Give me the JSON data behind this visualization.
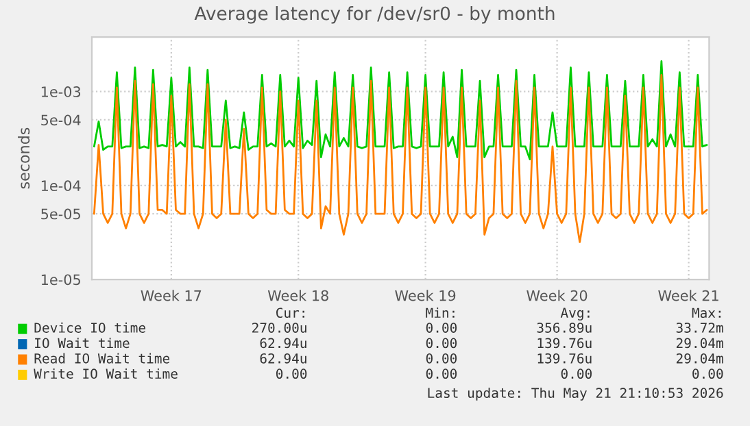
{
  "chart_data": {
    "type": "line",
    "title": "Average latency for /dev/sr0 - by month",
    "ylabel": "seconds",
    "log": "y",
    "grid": true,
    "legend": "bottom",
    "marker": "none",
    "line_style": "solid",
    "categories": [
      null,
      null,
      null,
      null,
      null,
      null,
      null,
      null,
      null,
      null,
      null,
      null,
      null,
      null,
      null,
      null,
      null,
      "Week 17",
      null,
      null,
      null,
      null,
      null,
      null,
      null,
      null,
      null,
      null,
      null,
      null,
      null,
      null,
      null,
      null,
      null,
      null,
      null,
      null,
      null,
      null,
      null,
      null,
      null,
      null,
      null,
      "Week 18",
      null,
      null,
      null,
      null,
      null,
      null,
      null,
      null,
      null,
      null,
      null,
      null,
      null,
      null,
      null,
      null,
      null,
      null,
      null,
      null,
      null,
      null,
      null,
      null,
      null,
      null,
      null,
      "Week 19",
      null,
      null,
      null,
      null,
      null,
      null,
      null,
      null,
      null,
      null,
      null,
      null,
      null,
      null,
      null,
      null,
      null,
      null,
      null,
      null,
      null,
      null,
      null,
      null,
      null,
      null,
      null,
      null,
      "Week 20",
      null,
      null,
      null,
      null,
      null,
      null,
      null,
      null,
      null,
      null,
      null,
      null,
      null,
      null,
      null,
      null,
      null,
      null,
      null,
      null,
      null,
      null,
      null,
      null,
      null,
      null,
      null,
      null,
      "Week 21",
      null,
      null,
      null,
      null
    ],
    "ylim": [
      1e-05,
      0.0038
    ],
    "yticks": [
      {
        "value": 1e-05,
        "label": "1e-05"
      },
      {
        "value": 5e-05,
        "label": "5e-05"
      },
      {
        "value": 0.0001,
        "label": "1e-04"
      },
      {
        "value": 0.0005,
        "label": "5e-04"
      },
      {
        "value": 0.001,
        "label": "1e-03"
      }
    ],
    "annotations": [
      "Cur:",
      "Min:",
      "Avg:",
      "Max:",
      "270.00u",
      "0.00",
      "356.89u",
      "33.72m",
      "62.94u",
      "0.00",
      "139.76u",
      "29.04m",
      "62.94u",
      "0.00",
      "139.76u",
      "29.04m",
      "0.00",
      "0.00",
      "0.00",
      "0.00",
      "Last update: Thu May 21 21:10:53 2026"
    ],
    "series": [
      {
        "name": "Device IO time",
        "color": "#00cc00",
        "values": [
          0.00026,
          0.00048,
          0.00024,
          0.00026,
          0.00026,
          0.0016,
          0.00025,
          0.00026,
          0.00026,
          0.0018,
          0.00025,
          0.00026,
          0.00025,
          0.0017,
          0.00026,
          0.00027,
          0.00026,
          0.0014,
          0.00026,
          0.00029,
          0.00026,
          0.0018,
          0.00026,
          0.00026,
          0.00025,
          0.0017,
          0.00026,
          0.00026,
          0.00026,
          0.0008,
          0.00025,
          0.00026,
          0.00025,
          0.0006,
          0.00024,
          0.00026,
          0.00026,
          0.0015,
          0.00026,
          0.00028,
          0.00026,
          0.0015,
          0.00026,
          0.0003,
          0.00026,
          0.0014,
          0.00025,
          0.0003,
          0.00027,
          0.0013,
          0.0002,
          0.00035,
          0.00026,
          0.0016,
          0.00026,
          0.00032,
          0.00026,
          0.0015,
          0.00026,
          0.00025,
          0.00026,
          0.0018,
          0.00026,
          0.00026,
          0.00026,
          0.0016,
          0.00025,
          0.00026,
          0.00026,
          0.0016,
          0.00026,
          0.00025,
          0.00026,
          0.0015,
          0.00026,
          0.00026,
          0.00026,
          0.0016,
          0.00026,
          0.00033,
          0.0002,
          0.0017,
          0.00026,
          0.00026,
          0.00026,
          0.0013,
          0.0002,
          0.00026,
          0.00026,
          0.0015,
          0.00026,
          0.00026,
          0.00026,
          0.0017,
          0.00026,
          0.00026,
          0.00019,
          0.0015,
          0.00026,
          0.00026,
          0.00026,
          0.0006,
          0.00026,
          0.00026,
          0.00026,
          0.0018,
          0.00026,
          0.00026,
          0.00026,
          0.0016,
          0.00026,
          0.00026,
          0.00026,
          0.0015,
          0.00026,
          0.00026,
          0.00026,
          0.0013,
          0.00026,
          0.00026,
          0.00026,
          0.0015,
          0.00026,
          0.00031,
          0.00026,
          0.0021,
          0.00026,
          0.00035,
          0.00026,
          0.0016,
          0.00026,
          0.00026,
          0.00026,
          0.0015,
          0.00026,
          0.00027
        ]
      },
      {
        "name": "IO Wait time",
        "color": "#0066b3",
        "values": [
          null,
          null,
          null,
          null,
          null,
          null,
          null,
          null,
          null,
          null,
          null,
          null,
          null,
          null,
          null,
          null,
          null,
          null,
          null,
          null,
          null,
          null,
          null,
          null,
          null,
          null,
          null,
          null,
          null,
          null,
          null,
          null,
          null,
          null,
          null,
          null,
          null,
          null,
          null,
          null,
          null,
          null,
          null,
          null,
          null,
          null,
          null,
          null,
          null,
          null,
          null,
          null,
          null,
          null,
          null,
          null,
          null,
          null,
          null,
          null,
          null,
          null,
          null,
          null,
          null,
          null,
          null,
          null,
          null,
          null,
          null,
          null,
          null,
          null,
          null,
          null,
          null,
          null,
          null,
          null,
          null,
          null,
          null,
          null,
          null,
          null,
          null,
          null,
          null,
          null,
          null,
          null,
          null,
          null,
          null,
          null,
          null,
          null,
          null,
          null,
          null,
          null,
          null,
          null,
          null,
          null,
          null,
          null,
          null,
          null,
          null,
          null,
          null,
          null,
          null,
          null,
          null,
          null,
          null,
          null,
          null,
          null,
          null,
          null,
          null,
          null,
          null,
          null,
          null,
          null,
          null,
          null,
          null,
          null,
          null,
          null
        ]
      },
      {
        "name": "Read IO Wait time",
        "color": "#ff8000",
        "values": [
          5e-05,
          0.00027,
          5e-05,
          4e-05,
          5e-05,
          0.0011,
          5e-05,
          3.5e-05,
          5e-05,
          0.0013,
          5e-05,
          4e-05,
          5e-05,
          0.0012,
          5.5e-05,
          5.5e-05,
          5e-05,
          0.0009,
          5.5e-05,
          5e-05,
          5e-05,
          0.0012,
          5e-05,
          3.5e-05,
          5e-05,
          0.0012,
          5e-05,
          4.5e-05,
          5e-05,
          0.0005,
          5e-05,
          5e-05,
          5e-05,
          0.0004,
          5e-05,
          4.5e-05,
          5e-05,
          0.0011,
          5.5e-05,
          5e-05,
          5e-05,
          0.001,
          5.5e-05,
          5e-05,
          5e-05,
          0.0008,
          5e-05,
          4.5e-05,
          5e-05,
          0.0008,
          3.5e-05,
          6e-05,
          5e-05,
          0.0011,
          5e-05,
          3e-05,
          5e-05,
          0.0011,
          5e-05,
          4e-05,
          5e-05,
          0.0013,
          5e-05,
          5e-05,
          5e-05,
          0.0011,
          5e-05,
          4e-05,
          5e-05,
          0.0011,
          5e-05,
          4.5e-05,
          5e-05,
          0.0011,
          5e-05,
          4e-05,
          5e-05,
          0.0011,
          5e-05,
          4e-05,
          5e-05,
          0.0011,
          5e-05,
          4.5e-05,
          5e-05,
          0.0008,
          3e-05,
          4.5e-05,
          5e-05,
          0.0011,
          5e-05,
          4.5e-05,
          5e-05,
          0.0013,
          5e-05,
          4e-05,
          5e-05,
          0.0011,
          5e-05,
          3.5e-05,
          5e-05,
          0.00026,
          5e-05,
          4e-05,
          5e-05,
          0.0011,
          5e-05,
          2.5e-05,
          5e-05,
          0.0011,
          5e-05,
          4e-05,
          5e-05,
          0.0011,
          5e-05,
          4.5e-05,
          5e-05,
          0.0009,
          5e-05,
          4e-05,
          5e-05,
          0.0011,
          5e-05,
          4e-05,
          5e-05,
          0.0015,
          5e-05,
          4e-05,
          5e-05,
          0.0011,
          5e-05,
          4.5e-05,
          5e-05,
          0.0011,
          5e-05,
          5.5e-05
        ]
      },
      {
        "name": "Write IO Wait time",
        "color": "#ffcc00",
        "values": [
          null,
          null,
          null,
          null,
          null,
          null,
          null,
          null,
          null,
          null,
          null,
          null,
          null,
          null,
          null,
          null,
          null,
          null,
          null,
          null,
          null,
          null,
          null,
          null,
          null,
          null,
          null,
          null,
          null,
          null,
          null,
          null,
          null,
          null,
          null,
          null,
          null,
          null,
          null,
          null,
          null,
          null,
          null,
          null,
          null,
          null,
          null,
          null,
          null,
          null,
          null,
          null,
          null,
          null,
          null,
          null,
          null,
          null,
          null,
          null,
          null,
          null,
          null,
          null,
          null,
          null,
          null,
          null,
          null,
          null,
          null,
          null,
          null,
          null,
          null,
          null,
          null,
          null,
          null,
          null,
          null,
          null,
          null,
          null,
          null,
          null,
          null,
          null,
          null,
          null,
          null,
          null,
          null,
          null,
          null,
          null,
          null,
          null,
          null,
          null,
          null,
          null,
          null,
          null,
          null,
          null,
          null,
          null,
          null,
          null,
          null,
          null,
          null,
          null,
          null,
          null,
          null,
          null,
          null,
          null,
          null,
          null,
          null,
          null,
          null,
          null,
          null,
          null,
          null,
          null,
          null,
          null,
          null,
          null,
          null,
          null
        ]
      }
    ]
  }
}
